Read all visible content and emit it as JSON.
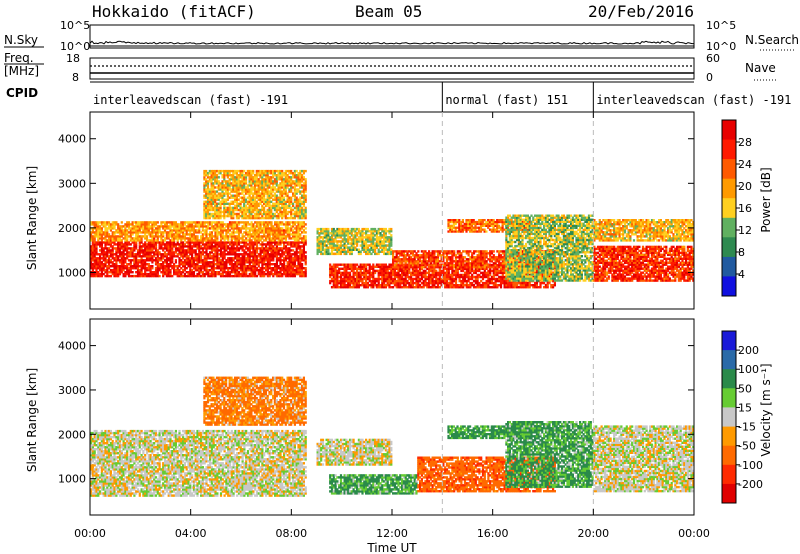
{
  "header": {
    "station": "Hokkaido (fitACF)",
    "beam": "Beam 05",
    "date": "20/Feb/2016"
  },
  "nsky_panel": {
    "left_label": "N.Sky",
    "right_label": "N.Search",
    "left_ticks": [
      "10^5",
      "10^0"
    ],
    "right_ticks": [
      "10^5",
      "10^0"
    ]
  },
  "freq_panel": {
    "left_label_1": "Freq.",
    "left_label_2": "[MHz]",
    "left_ticks": [
      "18",
      "8"
    ],
    "right_label": "Nave",
    "right_ticks": [
      "60",
      "0"
    ]
  },
  "cpid_panel": {
    "label": "CPID",
    "segments": [
      {
        "text": "interleavedscan (fast) -191",
        "start_hour": 0,
        "end_hour": 14
      },
      {
        "text": "normal (fast) 151",
        "start_hour": 14,
        "end_hour": 20
      },
      {
        "text": "interleavedscan (fast) -191",
        "start_hour": 20,
        "end_hour": 24
      }
    ]
  },
  "x_axis": {
    "label": "Time UT",
    "tick_labels": [
      "00:00",
      "04:00",
      "08:00",
      "12:00",
      "16:00",
      "20:00",
      "00:00"
    ]
  },
  "power_panel": {
    "ylabel": "Slant Range [km]",
    "y_ticks": [
      "1000",
      "2000",
      "3000",
      "4000"
    ],
    "cbar_label": "Power [dB]",
    "cbar_ticks": [
      "4",
      "8",
      "12",
      "16",
      "20",
      "24",
      "28"
    ],
    "cbar_colors": [
      "#1010e0",
      "#205aa0",
      "#2e8a50",
      "#60b060",
      "#ffd020",
      "#ff9a00",
      "#ff5a00",
      "#ff1a00",
      "#e80000"
    ]
  },
  "velocity_panel": {
    "ylabel": "Slant Range [km]",
    "y_ticks": [
      "1000",
      "2000",
      "3000",
      "4000"
    ],
    "cbar_label": "Velocity [m s⁻¹]",
    "cbar_ticks": [
      "200",
      "100",
      "50",
      "15",
      "-15",
      "-50",
      "-100",
      "-200"
    ],
    "cbar_colors": [
      "#1a1ad8",
      "#2a6aa8",
      "#2a8a4a",
      "#66cc33",
      "#c8c8c8",
      "#ff9a00",
      "#ff6a00",
      "#ff2a00",
      "#e00000"
    ]
  },
  "chart_data": [
    {
      "type": "heatmap",
      "title": "Hokkaido (fitACF) Beam 05 20/Feb/2016",
      "quantity": "Power",
      "unit": "dB",
      "xlabel": "Time UT",
      "ylabel": "Slant Range [km]",
      "xlim_hours": [
        0,
        24
      ],
      "ylim_km": [
        180,
        4600
      ],
      "color_range": [
        0,
        32
      ],
      "regions": [
        {
          "start_hour": 0.0,
          "end_hour": 8.6,
          "range_min_km": 900,
          "range_max_km": 1700,
          "power_db": 28
        },
        {
          "start_hour": 0.0,
          "end_hour": 8.6,
          "range_min_km": 1700,
          "range_max_km": 2150,
          "power_db": 20
        },
        {
          "start_hour": 4.5,
          "end_hour": 8.6,
          "range_min_km": 2200,
          "range_max_km": 3300,
          "power_db": 18
        },
        {
          "start_hour": 9.0,
          "end_hour": 12.0,
          "range_min_km": 1400,
          "range_max_km": 2000,
          "power_db": 15
        },
        {
          "start_hour": 9.5,
          "end_hour": 18.5,
          "range_min_km": 650,
          "range_max_km": 1200,
          "power_db": 27
        },
        {
          "start_hour": 12.0,
          "end_hour": 18.5,
          "range_min_km": 1100,
          "range_max_km": 1500,
          "power_db": 25
        },
        {
          "start_hour": 14.2,
          "end_hour": 17.5,
          "range_min_km": 1900,
          "range_max_km": 2200,
          "power_db": 22
        },
        {
          "start_hour": 16.5,
          "end_hour": 20.0,
          "range_min_km": 800,
          "range_max_km": 2300,
          "power_db": 14
        },
        {
          "start_hour": 20.0,
          "end_hour": 24.0,
          "range_min_km": 800,
          "range_max_km": 1600,
          "power_db": 26
        },
        {
          "start_hour": 20.0,
          "end_hour": 24.0,
          "range_min_km": 1700,
          "range_max_km": 2200,
          "power_db": 18
        }
      ]
    },
    {
      "type": "heatmap",
      "title": "Hokkaido (fitACF) Beam 05 20/Feb/2016",
      "quantity": "Velocity",
      "unit": "m s^-1",
      "xlabel": "Time UT",
      "ylabel": "Slant Range [km]",
      "xlim_hours": [
        0,
        24
      ],
      "ylim_km": [
        180,
        4600
      ],
      "color_range": [
        -200,
        200
      ],
      "regions": [
        {
          "start_hour": 0.0,
          "end_hour": 8.6,
          "range_min_km": 600,
          "range_max_km": 2100,
          "velocity": 0
        },
        {
          "start_hour": 4.5,
          "end_hour": 8.6,
          "range_min_km": 2200,
          "range_max_km": 3300,
          "velocity": -40
        },
        {
          "start_hour": 9.0,
          "end_hour": 12.0,
          "range_min_km": 1300,
          "range_max_km": 1900,
          "velocity": 0
        },
        {
          "start_hour": 9.5,
          "end_hour": 13.0,
          "range_min_km": 650,
          "range_max_km": 1100,
          "velocity": 40
        },
        {
          "start_hour": 13.0,
          "end_hour": 18.5,
          "range_min_km": 700,
          "range_max_km": 1500,
          "velocity": -60
        },
        {
          "start_hour": 14.2,
          "end_hour": 17.5,
          "range_min_km": 1900,
          "range_max_km": 2200,
          "velocity": 45
        },
        {
          "start_hour": 16.5,
          "end_hour": 20.0,
          "range_min_km": 800,
          "range_max_km": 2300,
          "velocity": 40
        },
        {
          "start_hour": 20.0,
          "end_hour": 24.0,
          "range_min_km": 700,
          "range_max_km": 2200,
          "velocity": 0
        }
      ]
    }
  ]
}
